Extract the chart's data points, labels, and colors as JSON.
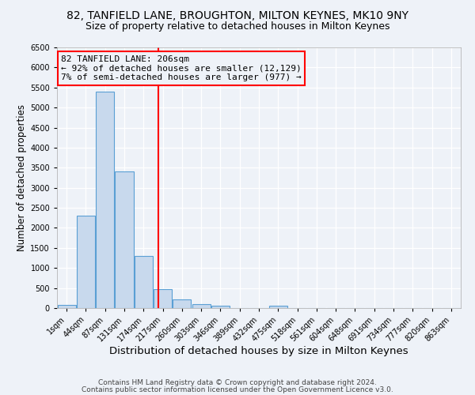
{
  "title1": "82, TANFIELD LANE, BROUGHTON, MILTON KEYNES, MK10 9NY",
  "title2": "Size of property relative to detached houses in Milton Keynes",
  "xlabel": "Distribution of detached houses by size in Milton Keynes",
  "ylabel": "Number of detached properties",
  "footnote1": "Contains HM Land Registry data © Crown copyright and database right 2024.",
  "footnote2": "Contains public sector information licensed under the Open Government Licence v3.0.",
  "categories": [
    "1sqm",
    "44sqm",
    "87sqm",
    "131sqm",
    "174sqm",
    "217sqm",
    "260sqm",
    "303sqm",
    "346sqm",
    "389sqm",
    "432sqm",
    "475sqm",
    "518sqm",
    "561sqm",
    "604sqm",
    "648sqm",
    "691sqm",
    "734sqm",
    "777sqm",
    "820sqm",
    "863sqm"
  ],
  "values": [
    75,
    2300,
    5400,
    3400,
    1300,
    475,
    220,
    100,
    50,
    0,
    0,
    60,
    0,
    0,
    0,
    0,
    0,
    0,
    0,
    0,
    0
  ],
  "bar_color": "#c8d9ed",
  "bar_edge_color": "#5a9fd4",
  "vline_x": 4.78,
  "vline_color": "red",
  "annotation_line1": "82 TANFIELD LANE: 206sqm",
  "annotation_line2": "← 92% of detached houses are smaller (12,129)",
  "annotation_line3": "7% of semi-detached houses are larger (977) →",
  "annotation_box_color": "red",
  "ylim": [
    0,
    6500
  ],
  "background_color": "#eef2f8",
  "grid_color": "white",
  "title1_fontsize": 10,
  "title2_fontsize": 9,
  "xlabel_fontsize": 9.5,
  "ylabel_fontsize": 8.5,
  "tick_fontsize": 7,
  "annotation_fontsize": 8,
  "footnote_fontsize": 6.5
}
